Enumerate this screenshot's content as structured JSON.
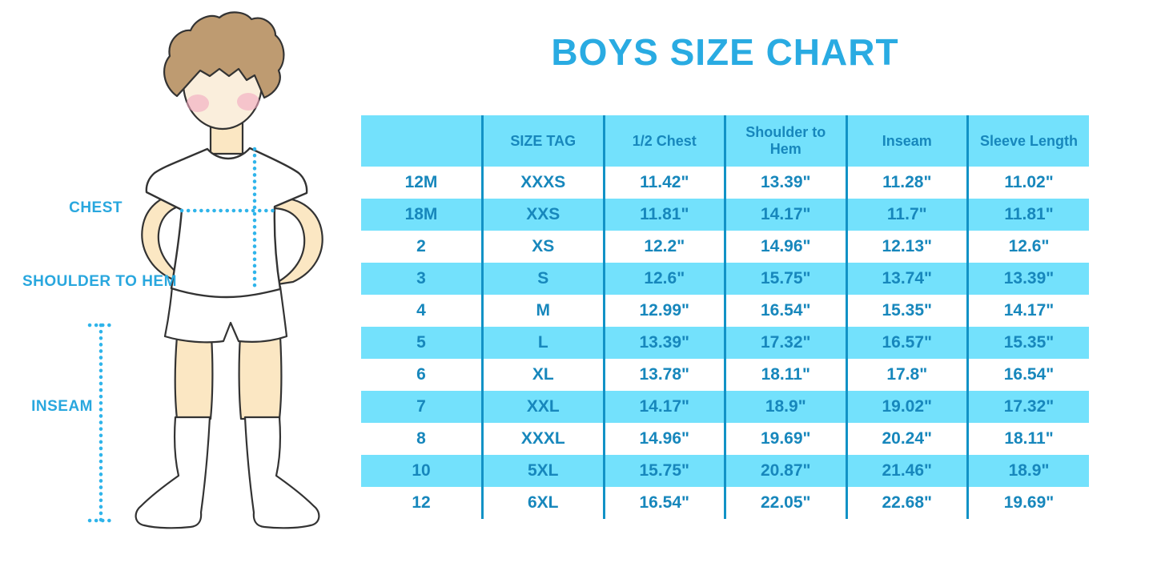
{
  "title": "BOYS SIZE CHART",
  "figure": {
    "chest_label": "CHEST",
    "shoulder_to_hem_label": "SHOULDER TO HEM",
    "inseam_label": "INSEAM"
  },
  "chart_data": {
    "type": "table",
    "title": "BOYS SIZE CHART",
    "columns": [
      "",
      "SIZE TAG",
      "1/2 Chest",
      "Shoulder to Hem",
      "Inseam",
      "Sleeve Length"
    ],
    "rows": [
      [
        "12M",
        "XXXS",
        "11.42\"",
        "13.39\"",
        "11.28\"",
        "11.02\""
      ],
      [
        "18M",
        "XXS",
        "11.81\"",
        "14.17\"",
        "11.7\"",
        "11.81\""
      ],
      [
        "2",
        "XS",
        "12.2\"",
        "14.96\"",
        "12.13\"",
        "12.6\""
      ],
      [
        "3",
        "S",
        "12.6\"",
        "15.75\"",
        "13.74\"",
        "13.39\""
      ],
      [
        "4",
        "M",
        "12.99\"",
        "16.54\"",
        "15.35\"",
        "14.17\""
      ],
      [
        "5",
        "L",
        "13.39\"",
        "17.32\"",
        "16.57\"",
        "15.35\""
      ],
      [
        "6",
        "XL",
        "13.78\"",
        "18.11\"",
        "17.8\"",
        "16.54\""
      ],
      [
        "7",
        "XXL",
        "14.17\"",
        "18.9\"",
        "19.02\"",
        "17.32\""
      ],
      [
        "8",
        "XXXL",
        "14.96\"",
        "19.69\"",
        "20.24\"",
        "18.11\""
      ],
      [
        "10",
        "5XL",
        "15.75\"",
        "20.87\"",
        "21.46\"",
        "18.9\""
      ],
      [
        "12",
        "6XL",
        "16.54\"",
        "22.05\"",
        "22.68\"",
        "19.69\""
      ]
    ],
    "row_striping": "white / light-cyan alternating, header cyan",
    "grid": "vertical column separators only"
  },
  "colors": {
    "title_blue": "#29ABE2",
    "label_blue": "#29A7DE",
    "dotted_line_blue": "#2FB4EA",
    "row_cyan": "#73E1FC",
    "grid_line_blue": "#1292C6",
    "cell_text_blue": "#1787BC",
    "skin": "#FBE7C3",
    "face_skin": "#FAEEDC",
    "hair_brown": "#BE9B71",
    "blush_pink": "#F2A8C0",
    "outline": "#333333"
  }
}
